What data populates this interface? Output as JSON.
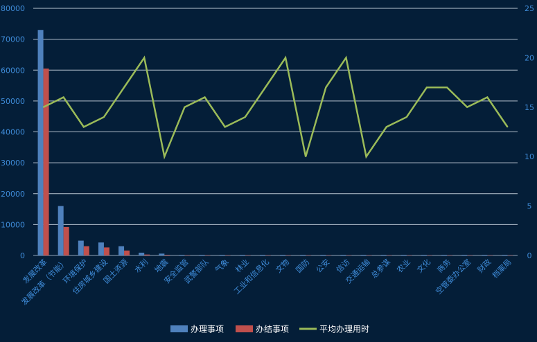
{
  "chart_data": {
    "type": "bar+line",
    "title": "",
    "categories": [
      "发展改革",
      "发展改革（节能）",
      "环境保护",
      "住房城乡建设",
      "国土资源",
      "水利",
      "地震",
      "安全监管",
      "武警部队",
      "气象",
      "林业",
      "工业和信息化",
      "文物",
      "国防",
      "公安",
      "信访",
      "交通运输",
      "总参谋",
      "农业",
      "文化",
      "商务",
      "空管委办公室",
      "财政",
      "档案局"
    ],
    "left_axis": {
      "min": 0,
      "max": 80000,
      "ticks": [
        0,
        10000,
        20000,
        30000,
        40000,
        50000,
        60000,
        70000,
        80000
      ]
    },
    "right_axis": {
      "min": 0,
      "max": 25,
      "ticks": [
        0,
        5,
        10,
        15,
        20,
        25
      ]
    },
    "series": [
      {
        "name": "办理事项",
        "type": "bar",
        "axis": "left",
        "color": "#4f81bd",
        "values": [
          73000,
          16000,
          4800,
          4200,
          3000,
          900,
          600,
          200,
          200,
          200,
          200,
          200,
          200,
          200,
          200,
          200,
          200,
          200,
          200,
          200,
          200,
          200,
          200,
          200
        ]
      },
      {
        "name": "办结事项",
        "type": "bar",
        "axis": "left",
        "color": "#c0504d",
        "values": [
          60500,
          9200,
          3000,
          2600,
          1600,
          300,
          200,
          100,
          100,
          100,
          100,
          100,
          100,
          100,
          100,
          100,
          100,
          100,
          100,
          100,
          100,
          100,
          100,
          100
        ]
      },
      {
        "name": "平均办理用时",
        "type": "line",
        "axis": "right",
        "color": "#9bbb59",
        "values": [
          15,
          16,
          13,
          14,
          17,
          20,
          10,
          15,
          16,
          13,
          14,
          17,
          20,
          10,
          17,
          20,
          10,
          13,
          14,
          17,
          17,
          15,
          16,
          13
        ]
      }
    ],
    "legend": "bottom-center",
    "grid": true
  }
}
